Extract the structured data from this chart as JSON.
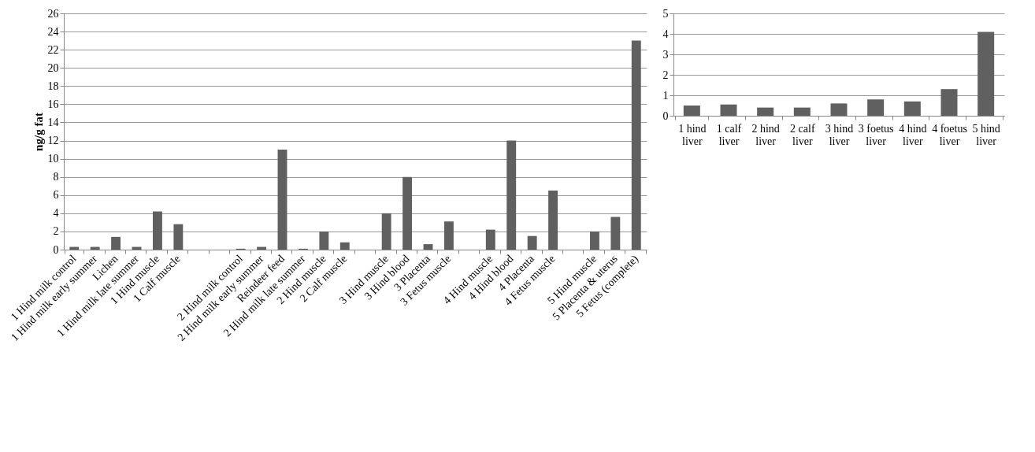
{
  "chart_data": [
    {
      "type": "bar",
      "ylabel": "ng/g fat",
      "categories": [
        "1 Hind milk control",
        "1 Hind milk early summer",
        "Lichen",
        "1 Hind milk late summer",
        "1 Hind muscle",
        "1 Calf muscle",
        null,
        null,
        "2 Hind milk control",
        "2 Hind milk early summer",
        "Reindeer feed",
        "2 Hind milk late summer",
        "2 Hind muscle",
        "2 Calf muscle",
        null,
        "3 Hind muscle",
        "3 Hind blood",
        "3 Placenta",
        "3 Fetus muscle",
        null,
        "4 Hind muscle",
        "4 Hind blood",
        "4 Placenta",
        "4 Fetus muscle",
        null,
        "5 Hind muscle",
        "5 Placenta & uterus",
        "5 Fetus (complete)"
      ],
      "values": [
        0.3,
        0.3,
        1.4,
        0.3,
        4.2,
        2.8,
        null,
        null,
        0.1,
        0.3,
        11,
        0.1,
        2,
        0.8,
        null,
        4,
        8,
        0.6,
        3.1,
        null,
        2.2,
        12,
        1.5,
        6.5,
        null,
        2,
        3.6,
        23
      ],
      "color": "#606060",
      "ylim": [
        0,
        26
      ],
      "yticks": [
        0,
        2,
        4,
        6,
        8,
        10,
        12,
        14,
        16,
        18,
        20,
        22,
        24,
        26
      ],
      "grid": "y"
    },
    {
      "type": "bar",
      "categories": [
        "1 hind liver",
        "1 calf liver",
        "2 hind liver",
        "2 calf liver",
        "3 hind liver",
        "3 foetus liver",
        "4 hind liver",
        "4 foetus liver",
        "5 hind liver"
      ],
      "values": [
        0.5,
        0.55,
        0.4,
        0.4,
        0.6,
        0.8,
        0.7,
        1.3,
        4.1
      ],
      "color": "#606060",
      "ylim": [
        0,
        5
      ],
      "yticks": [
        0,
        1,
        2,
        3,
        4,
        5
      ],
      "grid": "y"
    }
  ]
}
